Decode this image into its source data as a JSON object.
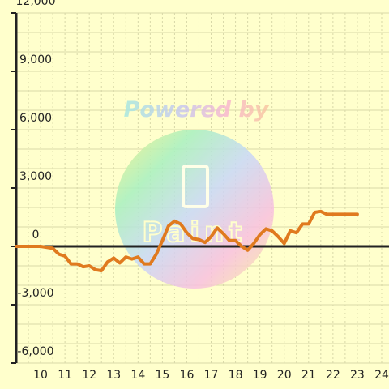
{
  "watermark": {
    "text": "Powered by",
    "logo_text": "Paint"
  },
  "colors": {
    "background": "#ffffcc",
    "grid": "#d8d8a8",
    "axis": "#222222",
    "line": "#e07a1f"
  },
  "chart_data": {
    "type": "line",
    "title": "",
    "xlabel": "",
    "ylabel": "",
    "xlim": [
      9.0,
      24.3
    ],
    "ylim": [
      -6000,
      12000
    ],
    "x_ticks": [
      10,
      11,
      12,
      13,
      14,
      15,
      16,
      17,
      18,
      19,
      20,
      21,
      22,
      23,
      24
    ],
    "y_ticks": [
      {
        "value": -6000,
        "label": "-6,000"
      },
      {
        "value": -3000,
        "label": "-3,000"
      },
      {
        "value": 0,
        "label": "0"
      },
      {
        "value": 3000,
        "label": "3,000"
      },
      {
        "value": 6000,
        "label": "6,000"
      },
      {
        "value": 9000,
        "label": "9,000"
      },
      {
        "value": 12000,
        "label": "12,000"
      }
    ],
    "grid": true,
    "series": [
      {
        "x": [
          9.0,
          10.0,
          10.5,
          10.75,
          11.0,
          11.25,
          11.5,
          11.75,
          12.0,
          12.25,
          12.5,
          12.75,
          13.0,
          13.25,
          13.5,
          13.75,
          14.0,
          14.25,
          14.5,
          14.75,
          15.0,
          15.25,
          15.5,
          15.75,
          16.0,
          16.25,
          16.5,
          16.75,
          17.0,
          17.25,
          17.5,
          17.75,
          18.0,
          18.25,
          18.5,
          18.75,
          19.0,
          19.25,
          19.5,
          19.75,
          20.0,
          20.25,
          20.5,
          20.75,
          21.0,
          21.25,
          21.5,
          21.75,
          22.0,
          22.5,
          23.0
        ],
        "values": [
          0,
          0,
          -100,
          -400,
          -500,
          -900,
          -900,
          -1050,
          -1000,
          -1200,
          -1250,
          -800,
          -600,
          -850,
          -550,
          -650,
          -550,
          -900,
          -900,
          -400,
          300,
          1050,
          1300,
          1150,
          700,
          400,
          350,
          200,
          500,
          950,
          650,
          300,
          300,
          0,
          -200,
          150,
          600,
          900,
          800,
          500,
          150,
          800,
          700,
          1150,
          1150,
          1750,
          1800,
          1650,
          1650,
          1650,
          1650
        ]
      }
    ]
  }
}
